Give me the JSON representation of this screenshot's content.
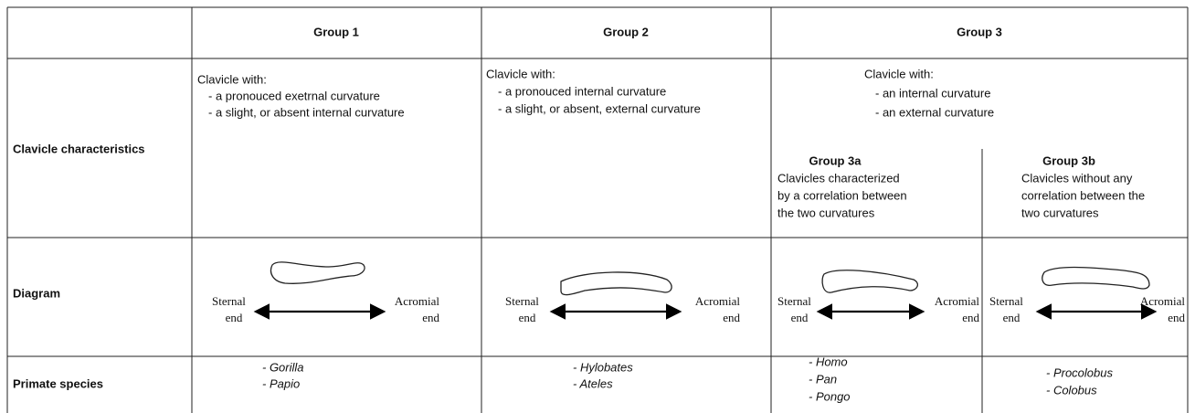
{
  "header": {
    "cells": [
      "Group 1",
      "Group 2",
      "Group 3"
    ]
  },
  "characteristics": {
    "label": "Clavicle characteristics",
    "group1": {
      "intro": "Clavicle with:",
      "items": [
        "- a pronouced exetrnal curvature",
        "- a slight, or absent internal curvature"
      ]
    },
    "group2": {
      "intro": "Clavicle with:",
      "items": [
        "- a pronouced internal curvature",
        "- a slight, or absent, external curvature"
      ]
    },
    "group3": {
      "intro": "Clavicle with:",
      "items": [
        "- an internal curvature",
        "- an external curvature"
      ]
    },
    "group3a": {
      "title": "Group 3a",
      "lines": [
        "Clavicles characterized",
        "by a correlation between",
        "the two curvatures"
      ]
    },
    "group3b": {
      "title": "Group 3b",
      "lines": [
        "Clavicles without any",
        "correlation between the",
        "two curvatures"
      ]
    }
  },
  "diagram": {
    "label": "Diagram",
    "panels": [
      {
        "sternal": [
          "Sternal",
          "end"
        ],
        "acromial": [
          "Acromial",
          "end"
        ]
      },
      {
        "sternal": [
          "Sternal",
          "end"
        ],
        "acromial": [
          "Acromial",
          "end"
        ]
      },
      {
        "sternal": [
          "Sternal",
          "end"
        ],
        "acromial": [
          "Acromial",
          "end"
        ]
      },
      {
        "sternal": [
          "Sternal",
          "end"
        ],
        "acromial": [
          "Acromial",
          "end"
        ]
      }
    ]
  },
  "species": {
    "label": "Primate species",
    "groups": [
      [
        "- Gorilla",
        "- Papio"
      ],
      [
        "- Hylobates",
        "- Ateles"
      ],
      [
        "- Homo",
        "- Pan",
        "- Pongo"
      ],
      [
        "- Procolobus",
        "- Colobus"
      ]
    ]
  }
}
